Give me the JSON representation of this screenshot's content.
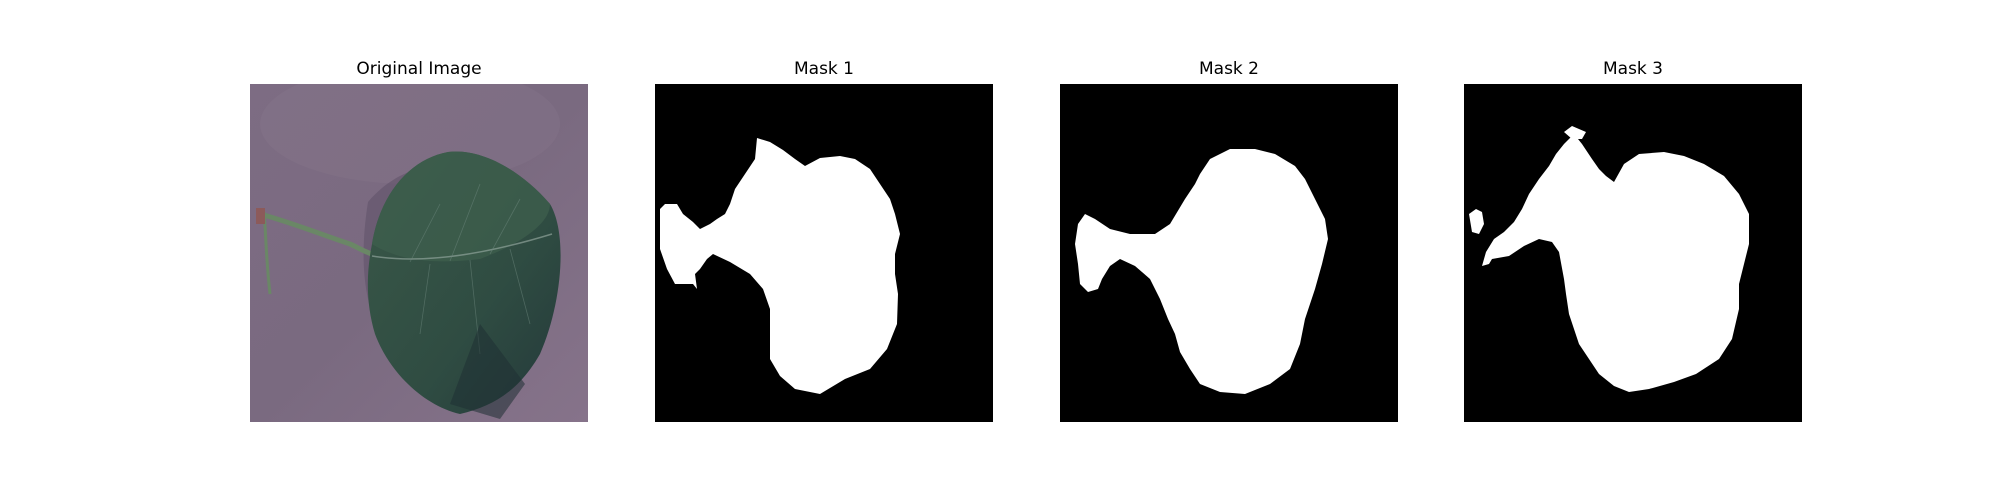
{
  "figure": {
    "panels": [
      {
        "title": "Original Image",
        "kind": "photo",
        "subject": "leaf"
      },
      {
        "title": "Mask 1",
        "kind": "binary-mask"
      },
      {
        "title": "Mask 2",
        "kind": "binary-mask"
      },
      {
        "title": "Mask 3",
        "kind": "binary-mask"
      }
    ]
  },
  "colors": {
    "background": "#ffffff",
    "mask_background": "#000000",
    "mask_foreground": "#ffffff",
    "photo_background": "#7b6a80",
    "leaf_dark": "#2e4a3e",
    "leaf_mid": "#3e5b4c",
    "stem": "#6d8a6a"
  }
}
